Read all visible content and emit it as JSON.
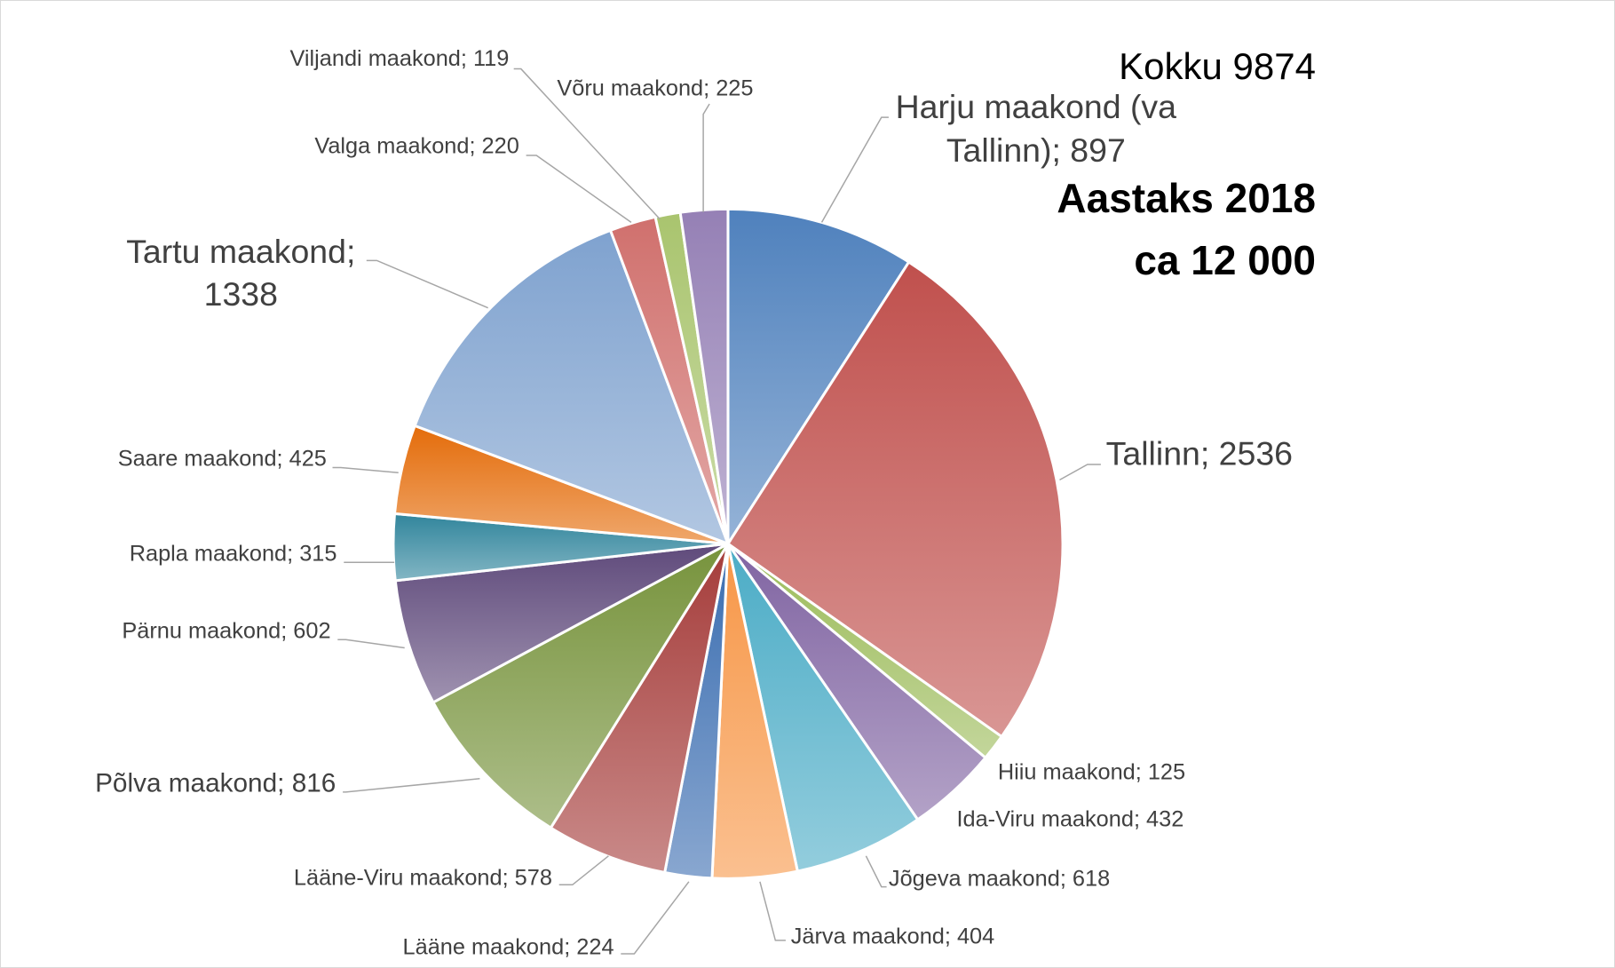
{
  "chart_data": {
    "type": "pie",
    "total_label": "Kokku 9874",
    "annotation_lines": [
      "Aastaks 2018",
      "ca 12 000"
    ],
    "label_separator": "; ",
    "categories": [
      "Harju maakond (va Tallinn)",
      "Tallinn",
      "Hiiu maakond",
      "Ida-Viru maakond",
      "Jõgeva maakond",
      "Järva maakond",
      "Lääne maakond",
      "Lääne-Viru maakond",
      "Põlva maakond",
      "Pärnu maakond",
      "Rapla maakond",
      "Saare maakond",
      "Tartu maakond",
      "Valga maakond",
      "Viljandi maakond",
      "Võru maakond"
    ],
    "values": [
      897,
      2536,
      125,
      432,
      618,
      404,
      224,
      578,
      816,
      602,
      315,
      425,
      1338,
      220,
      119,
      225
    ],
    "colors": [
      "#4f81bd",
      "#c0504d",
      "#9bbb59",
      "#8064a2",
      "#4bacc6",
      "#f79646",
      "#3a6db0",
      "#a53c3a",
      "#77933c",
      "#5f4a7b",
      "#31859c",
      "#e46c0a",
      "#7fa2cf",
      "#d0706d",
      "#a9c46e",
      "#9580b5"
    ]
  }
}
